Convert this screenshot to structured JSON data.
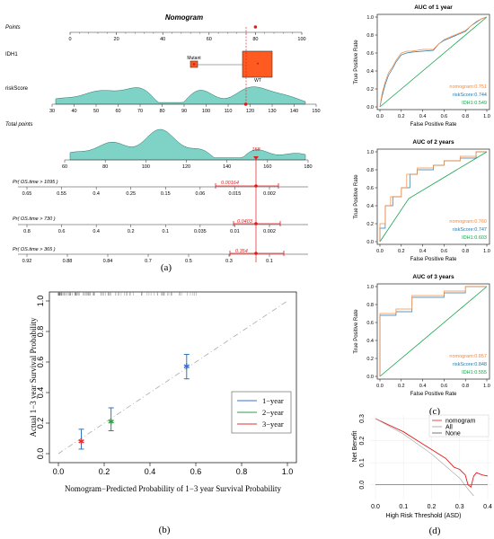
{
  "panel_labels": {
    "a": "(a)",
    "b": "(b)",
    "c": "(c)",
    "d": "(d)"
  },
  "colors": {
    "teal": "#7fd3c6",
    "red": "#e31a1c",
    "orange": "#f58a3c",
    "blue": "#2b77a8",
    "green": "#16a34a",
    "grey": "#9e9e9e"
  },
  "chart_data": [
    {
      "type": "nomogram",
      "title": "Nomogram",
      "rows": [
        {
          "label": "Points",
          "axis": [
            0,
            20,
            40,
            60,
            80,
            100
          ],
          "selected": 80
        },
        {
          "label": "IDH1",
          "levels": [
            "Mutant",
            "WT"
          ]
        },
        {
          "label": "riskScore",
          "axis": [
            30,
            40,
            50,
            60,
            70,
            80,
            90,
            100,
            110,
            120,
            130,
            140,
            150
          ],
          "selected": 118
        },
        {
          "label": "Total points",
          "axis": [
            60,
            80,
            100,
            120,
            140,
            160,
            180
          ],
          "selected": 158
        },
        {
          "label": "Pr( OS.time > 1095 )",
          "axis": [
            "0.65",
            "0.55",
            "0.4",
            "0.25",
            "0.15",
            "0.06",
            "0.015",
            "0.002"
          ],
          "estimate": "0.00164"
        },
        {
          "label": "Pr( OS.time > 730 )",
          "axis": [
            "0.8",
            "0.6",
            "0.4",
            "0.2",
            "0.1",
            "0.035",
            "0.01",
            "0.002"
          ],
          "estimate": "0.0403"
        },
        {
          "label": "Pr( OS.time > 365 )",
          "axis": [
            "0.92",
            "0.88",
            "0.84",
            "0.7",
            "0.5",
            "0.3",
            "0.1"
          ],
          "estimate": "0.354"
        }
      ]
    },
    {
      "type": "line",
      "title": "",
      "xlabel": "Nomogram−Predicted Probability of 1−3 year Survival Probability",
      "ylabel": "Actual 1−3 year Survival Probability",
      "xlim": [
        0,
        1
      ],
      "ylim": [
        0,
        1
      ],
      "xticks": [
        "0.0",
        "0.2",
        "0.4",
        "0.6",
        "0.8",
        "1.0"
      ],
      "yticks": [
        "0.0",
        "0.2",
        "0.4",
        "0.6",
        "0.8",
        "1.0"
      ],
      "legend_position": "bottom-right",
      "series": [
        {
          "name": "1−year",
          "color": "#3b6fd8",
          "points": [
            [
              0.56,
              0.57
            ]
          ],
          "err": [
            0.49,
            0.65
          ]
        },
        {
          "name": "2−year",
          "color": "#2ea043",
          "points": [
            [
              0.23,
              0.21
            ]
          ],
          "err": [
            0.15,
            0.3
          ]
        },
        {
          "name": "3−year",
          "color": "#e03030",
          "points": [
            [
              0.1,
              0.08
            ]
          ],
          "err": [
            0.03,
            0.16
          ]
        }
      ]
    },
    {
      "type": "line",
      "title": "AUC of 1 year",
      "xlabel": "False Positive Rate",
      "ylabel": "True Positive Rate",
      "xlim": [
        0,
        1
      ],
      "ylim": [
        0,
        1
      ],
      "ticks": [
        "0.0",
        "0.2",
        "0.4",
        "0.6",
        "0.8",
        "1.0"
      ],
      "legend": [
        "nomogram:0.751",
        "riskScore:0.744",
        "IDH1:0.549"
      ],
      "series": [
        {
          "name": "nomogram",
          "color": "#f58a3c",
          "points": [
            [
              0,
              0
            ],
            [
              0.02,
              0.15
            ],
            [
              0.05,
              0.28
            ],
            [
              0.08,
              0.38
            ],
            [
              0.12,
              0.45
            ],
            [
              0.15,
              0.52
            ],
            [
              0.2,
              0.6
            ],
            [
              0.25,
              0.62
            ],
            [
              0.3,
              0.62
            ],
            [
              0.4,
              0.64
            ],
            [
              0.5,
              0.64
            ],
            [
              0.55,
              0.7
            ],
            [
              0.6,
              0.75
            ],
            [
              0.7,
              0.8
            ],
            [
              0.8,
              0.85
            ],
            [
              0.85,
              0.9
            ],
            [
              0.9,
              0.95
            ],
            [
              0.95,
              0.98
            ],
            [
              1,
              1
            ]
          ]
        },
        {
          "name": "riskScore",
          "color": "#2b77a8",
          "points": [
            [
              0,
              0
            ],
            [
              0.02,
              0.12
            ],
            [
              0.05,
              0.25
            ],
            [
              0.08,
              0.35
            ],
            [
              0.12,
              0.43
            ],
            [
              0.15,
              0.5
            ],
            [
              0.2,
              0.58
            ],
            [
              0.25,
              0.6
            ],
            [
              0.3,
              0.61
            ],
            [
              0.4,
              0.62
            ],
            [
              0.5,
              0.63
            ],
            [
              0.55,
              0.7
            ],
            [
              0.6,
              0.74
            ],
            [
              0.7,
              0.79
            ],
            [
              0.8,
              0.84
            ],
            [
              0.85,
              0.9
            ],
            [
              0.9,
              0.94
            ],
            [
              0.95,
              0.98
            ],
            [
              1,
              1
            ]
          ]
        },
        {
          "name": "IDH1",
          "color": "#16a34a",
          "points": [
            [
              0,
              0
            ],
            [
              1,
              1
            ]
          ]
        }
      ]
    },
    {
      "type": "line",
      "title": "AUC of 2 years",
      "xlabel": "False Positive Rate",
      "ylabel": "True Positive Rate",
      "xlim": [
        0,
        1
      ],
      "ylim": [
        0,
        1
      ],
      "ticks": [
        "0.0",
        "0.2",
        "0.4",
        "0.6",
        "0.8",
        "1.0"
      ],
      "legend": [
        "nomogram:0.760",
        "riskScore:0.747",
        "IDH1:0.603"
      ],
      "series": [
        {
          "name": "nomogram",
          "color": "#f58a3c",
          "points": [
            [
              0,
              0
            ],
            [
              0,
              0.2
            ],
            [
              0.05,
              0.2
            ],
            [
              0.05,
              0.4
            ],
            [
              0.1,
              0.4
            ],
            [
              0.1,
              0.5
            ],
            [
              0.2,
              0.5
            ],
            [
              0.2,
              0.6
            ],
            [
              0.25,
              0.6
            ],
            [
              0.25,
              0.75
            ],
            [
              0.35,
              0.75
            ],
            [
              0.35,
              0.82
            ],
            [
              0.5,
              0.82
            ],
            [
              0.5,
              0.85
            ],
            [
              0.6,
              0.85
            ],
            [
              0.6,
              0.9
            ],
            [
              0.75,
              0.9
            ],
            [
              0.75,
              0.95
            ],
            [
              0.9,
              0.95
            ],
            [
              0.9,
              1
            ],
            [
              1,
              1
            ]
          ]
        },
        {
          "name": "riskScore",
          "color": "#2b77a8",
          "points": [
            [
              0,
              0
            ],
            [
              0,
              0.15
            ],
            [
              0.05,
              0.15
            ],
            [
              0.05,
              0.4
            ],
            [
              0.12,
              0.4
            ],
            [
              0.12,
              0.5
            ],
            [
              0.2,
              0.5
            ],
            [
              0.2,
              0.6
            ],
            [
              0.28,
              0.6
            ],
            [
              0.28,
              0.75
            ],
            [
              0.35,
              0.75
            ],
            [
              0.35,
              0.8
            ],
            [
              0.5,
              0.8
            ],
            [
              0.5,
              0.85
            ],
            [
              0.6,
              0.85
            ],
            [
              0.6,
              0.9
            ],
            [
              0.75,
              0.9
            ],
            [
              0.75,
              0.93
            ],
            [
              0.9,
              0.93
            ],
            [
              0.9,
              1
            ],
            [
              1,
              1
            ]
          ]
        },
        {
          "name": "IDH1",
          "color": "#16a34a",
          "points": [
            [
              0,
              0
            ],
            [
              0.27,
              0.48
            ],
            [
              1,
              1
            ]
          ]
        }
      ]
    },
    {
      "type": "line",
      "title": "AUC of 3 years",
      "xlabel": "False Positive Rate",
      "ylabel": "True Positive Rate",
      "xlim": [
        0,
        1
      ],
      "ylim": [
        0,
        1
      ],
      "ticks": [
        "0.0",
        "0.2",
        "0.4",
        "0.6",
        "0.8",
        "1.0"
      ],
      "legend": [
        "nomogram:0.857",
        "riskScore:0.848",
        "IDH1:0.555"
      ],
      "series": [
        {
          "name": "nomogram",
          "color": "#f58a3c",
          "points": [
            [
              0,
              0
            ],
            [
              0,
              0.7
            ],
            [
              0.15,
              0.7
            ],
            [
              0.15,
              0.75
            ],
            [
              0.3,
              0.75
            ],
            [
              0.3,
              0.9
            ],
            [
              0.6,
              0.9
            ],
            [
              0.6,
              0.95
            ],
            [
              0.8,
              0.95
            ],
            [
              0.8,
              1
            ],
            [
              1,
              1
            ]
          ]
        },
        {
          "name": "riskScore",
          "color": "#2b77a8",
          "points": [
            [
              0,
              0
            ],
            [
              0,
              0.68
            ],
            [
              0.15,
              0.68
            ],
            [
              0.15,
              0.72
            ],
            [
              0.3,
              0.72
            ],
            [
              0.3,
              0.88
            ],
            [
              0.6,
              0.88
            ],
            [
              0.6,
              0.93
            ],
            [
              0.8,
              0.93
            ],
            [
              0.8,
              1
            ],
            [
              1,
              1
            ]
          ]
        },
        {
          "name": "IDH1",
          "color": "#16a34a",
          "points": [
            [
              0,
              0
            ],
            [
              1,
              1
            ]
          ]
        }
      ]
    },
    {
      "type": "line",
      "title": "",
      "xlabel": "High Risk Threshold (ASD)",
      "ylabel": "Net Benefit",
      "xlim": [
        0,
        0.4
      ],
      "ylim": [
        -0.05,
        0.3
      ],
      "xticks": [
        "0.0",
        "0.1",
        "0.2",
        "0.3",
        "0.4"
      ],
      "yticks": [
        "0.0",
        "0.1",
        "0.2",
        "0.3"
      ],
      "legend": [
        "nomogram",
        "All",
        "None"
      ],
      "series": [
        {
          "name": "nomogram",
          "color": "#e31a1c",
          "points": [
            [
              0,
              0.3
            ],
            [
              0.05,
              0.27
            ],
            [
              0.1,
              0.24
            ],
            [
              0.15,
              0.2
            ],
            [
              0.2,
              0.16
            ],
            [
              0.25,
              0.12
            ],
            [
              0.28,
              0.08
            ],
            [
              0.3,
              0.07
            ],
            [
              0.32,
              0.045
            ],
            [
              0.33,
              0.0
            ],
            [
              0.34,
              -0.01
            ],
            [
              0.35,
              0.04
            ],
            [
              0.36,
              0.055
            ],
            [
              0.38,
              0.045
            ],
            [
              0.4,
              0.04
            ]
          ]
        },
        {
          "name": "All",
          "color": "#9e9e9e",
          "points": [
            [
              0,
              0.3
            ],
            [
              0.1,
              0.23
            ],
            [
              0.2,
              0.14
            ],
            [
              0.3,
              0.03
            ],
            [
              0.33,
              -0.02
            ],
            [
              0.35,
              -0.05
            ]
          ]
        },
        {
          "name": "None",
          "color": "#555555",
          "points": [
            [
              0,
              0
            ],
            [
              0.4,
              0
            ]
          ]
        }
      ]
    }
  ]
}
